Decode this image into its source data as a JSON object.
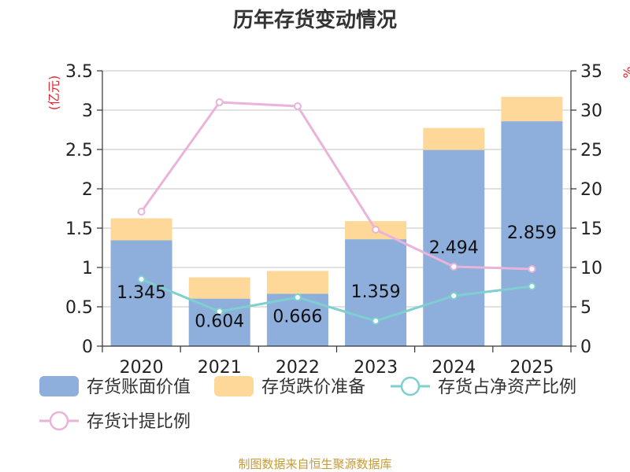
{
  "chart_data": {
    "type": "bar",
    "title": "历年存货变动情况",
    "categories": [
      "2020",
      "2021",
      "2022",
      "2023",
      "2024",
      "2025"
    ],
    "left_axis": {
      "unit_label": "(亿元)",
      "ylim": [
        0,
        3.5
      ],
      "ticks": [
        "0",
        "0.5",
        "1",
        "1.5",
        "2",
        "2.5",
        "3",
        "3.5"
      ]
    },
    "right_axis": {
      "unit_label": "%",
      "ylim": [
        0,
        35
      ],
      "ticks": [
        "0",
        "5",
        "10",
        "15",
        "20",
        "25",
        "30",
        "35"
      ]
    },
    "series": [
      {
        "name": "存货账面价值",
        "kind": "bar",
        "axis": "left",
        "color": "#8eaedb",
        "values": [
          1.345,
          0.604,
          0.666,
          1.359,
          2.494,
          2.859
        ],
        "labels": [
          "1.345",
          "0.604",
          "0.666",
          "1.359",
          "2.494",
          "2.859"
        ]
      },
      {
        "name": "存货跌价准备",
        "kind": "bar",
        "axis": "left",
        "stacked": true,
        "color": "#fdd898",
        "values": [
          0.28,
          0.27,
          0.29,
          0.23,
          0.28,
          0.31
        ]
      },
      {
        "name": "存货占净资产比例",
        "kind": "line",
        "axis": "right",
        "color": "#7ed0d0",
        "values": [
          8.5,
          4.4,
          6.2,
          3.2,
          6.4,
          7.6
        ]
      },
      {
        "name": "存货计提比例",
        "kind": "line",
        "axis": "right",
        "color": "#e9b3da",
        "values": [
          17.1,
          31.0,
          30.5,
          14.8,
          10.1,
          9.8
        ]
      }
    ],
    "legend_position": "bottom",
    "grid": true
  },
  "source_note": "制图数据来自恒生聚源数据库"
}
